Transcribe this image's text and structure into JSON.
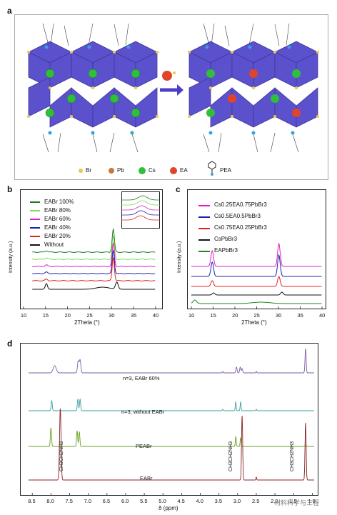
{
  "panel_a": {
    "label": "a",
    "legend": [
      {
        "name": "Br",
        "color": "#e8c84a"
      },
      {
        "name": "Pb",
        "color": "#c8783a"
      },
      {
        "name": "Cs",
        "color": "#2fbf3a"
      },
      {
        "name": "EA",
        "color": "#e0452a"
      },
      {
        "name": "PEA",
        "color": "#3aa0d8"
      }
    ]
  },
  "panel_b": {
    "label": "b",
    "ylabel": "Intensity (a.u.)",
    "xlabel": "2Theta (°)",
    "xticks": [
      "10",
      "15",
      "20",
      "25",
      "30",
      "35",
      "40"
    ],
    "legend": [
      {
        "name": "EABr 100%",
        "color": "#1e7a1e"
      },
      {
        "name": "EABr 80%",
        "color": "#7ed957"
      },
      {
        "name": "EABr 60%",
        "color": "#e020c0"
      },
      {
        "name": "EABr 40%",
        "color": "#2020b0"
      },
      {
        "name": "EABr 20%",
        "color": "#e02020"
      },
      {
        "name": "Without",
        "color": "#111111"
      }
    ]
  },
  "panel_c": {
    "label": "c",
    "ylabel": "Intensity (a.u.)",
    "xlabel": "2Theta (°)",
    "xticks": [
      "10",
      "15",
      "20",
      "25",
      "30",
      "35",
      "40"
    ],
    "legend": [
      {
        "name": "Cs0.25EA0.75PbBr3",
        "color": "#e020c0"
      },
      {
        "name": "Cs0.5EA0.5PbBr3",
        "color": "#2020b0"
      },
      {
        "name": "Cs0.75EA0.25PbBr3",
        "color": "#e02020"
      },
      {
        "name": "CsPbBr3",
        "color": "#111111"
      },
      {
        "name": "EAPbBr3",
        "color": "#1e8a1e"
      }
    ]
  },
  "panel_d": {
    "label": "d",
    "xlabel": "δ (ppm)",
    "xticks": [
      "8.5",
      "8.0",
      "7.5",
      "7.0",
      "6.5",
      "6.0",
      "5.5",
      "5.0",
      "4.5",
      "4.0",
      "3.5",
      "3.0",
      "2.5",
      "2.0",
      "1.5",
      "1.0"
    ],
    "spectra": [
      {
        "name": "n=3, EABr 60%",
        "color": "#7b5ea8"
      },
      {
        "name": "n=3, without EABr",
        "color": "#3aa0a0"
      },
      {
        "name": "PEABr",
        "color": "#6aa020"
      },
      {
        "name": "EABr",
        "color": "#8a2020"
      }
    ],
    "assignments": [
      "CH3CH2NH3",
      "CH3CH2NH3",
      "CH3CH2NH3"
    ]
  },
  "watermark": "材料科学与工程"
}
